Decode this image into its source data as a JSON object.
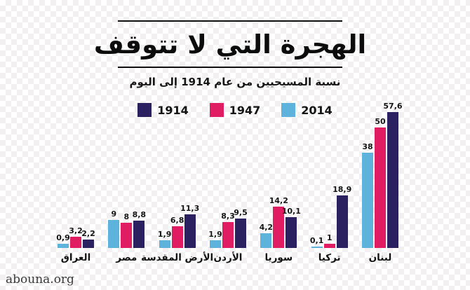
{
  "title": "الهجرة التي لا تتوقف",
  "subtitle": "نسبة المسيحيين من عام 1914 إلى اليوم",
  "watermark": "abouna.org",
  "colors": {
    "series_1914": "#2b2161",
    "series_1947": "#e01d62",
    "series_2014": "#5eb3dc",
    "text": "#111111"
  },
  "legend": {
    "items": [
      {
        "label": "1914",
        "color": "#2b2161"
      },
      {
        "label": "1947",
        "color": "#e01d62"
      },
      {
        "label": "2014",
        "color": "#5eb3dc"
      }
    ]
  },
  "chart_data": {
    "type": "bar",
    "title": "الهجرة التي لا تتوقف",
    "subtitle": "نسبة المسيحيين من عام 1914 إلى اليوم",
    "categories": [
      "العراق",
      "مصر",
      "الأرض المقدسة",
      "الأردن",
      "سوريا",
      "تركيا",
      "لبنان"
    ],
    "series": [
      {
        "name": "1914",
        "color": "#2b2161",
        "values": [
          2.2,
          8.8,
          11.3,
          9.5,
          10.1,
          18.9,
          57.6
        ],
        "labels": [
          "2,2",
          "8,8",
          "11,3",
          "9,5",
          "10,1",
          "18,9",
          "57,6"
        ]
      },
      {
        "name": "1947",
        "color": "#e01d62",
        "values": [
          3.2,
          8,
          6.8,
          8.3,
          14.2,
          1,
          50
        ],
        "labels": [
          "3,2",
          "8",
          "6,8",
          "8,3",
          "14,2",
          "1",
          "50"
        ]
      },
      {
        "name": "2014",
        "color": "#5eb3dc",
        "values": [
          0.9,
          9,
          1.9,
          1.9,
          4.2,
          0.1,
          38
        ],
        "labels": [
          "0,9",
          "9",
          "1,9",
          "1,9",
          "4,2",
          "0,1",
          "38"
        ]
      }
    ],
    "ylim": [
      0,
      60
    ],
    "grid": false,
    "legend_position": "top",
    "direction": "rtl"
  }
}
